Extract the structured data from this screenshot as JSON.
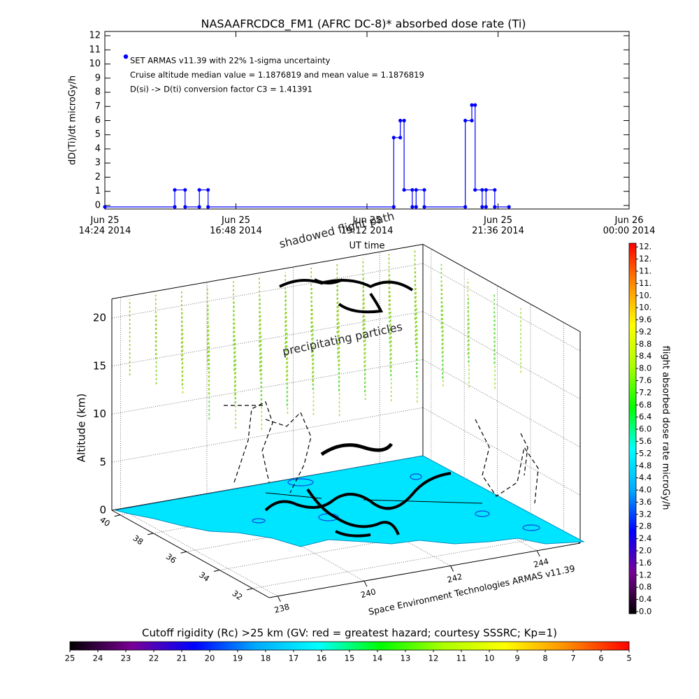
{
  "chart_data": [
    {
      "type": "line",
      "title": "NASAAFRCDC8_FM1 (AFRC DC-8)* absorbed dose rate (Ti)",
      "ylabel": "dD(Ti)/dt microGy/h",
      "xlabel": "UT time",
      "color": "#0000ff",
      "x": [
        14.4,
        15.68,
        15.68,
        15.87,
        15.87,
        16.13,
        16.13,
        16.29,
        16.29,
        19.69,
        19.69,
        19.81,
        19.81,
        19.88,
        19.88,
        20.03,
        20.03,
        20.1,
        20.1,
        20.25,
        20.25,
        21.0,
        21.0,
        21.12,
        21.12,
        21.18,
        21.18,
        21.31,
        21.31,
        21.38,
        21.38,
        21.54,
        21.54,
        21.8
      ],
      "values": [
        -0.1,
        -0.1,
        1.1,
        1.1,
        -0.1,
        -0.1,
        1.1,
        1.1,
        -0.1,
        -0.1,
        4.8,
        4.8,
        6.0,
        6.0,
        1.1,
        1.1,
        -0.1,
        -0.1,
        1.1,
        1.1,
        -0.1,
        -0.1,
        6.0,
        6.0,
        7.1,
        7.1,
        1.1,
        1.1,
        -0.1,
        -0.1,
        1.1,
        1.1,
        -0.1,
        -0.1
      ],
      "xlim": [
        14.4,
        24
      ],
      "xticks": [
        {
          "value": 14.4,
          "label": "Jun 25\n14:24 2014"
        },
        {
          "value": 16.8,
          "label": "Jun 25\n16:48 2014"
        },
        {
          "value": 19.2,
          "label": "Jun 25\n19:12 2014"
        },
        {
          "value": 21.6,
          "label": "Jun 25\n21:36 2014"
        },
        {
          "value": 24,
          "label": "Jun 26\n00:00 2014"
        }
      ],
      "ylim": [
        -0.25,
        12.3
      ],
      "yticks": [
        0,
        1,
        2,
        3,
        4,
        5,
        6,
        7,
        8,
        9,
        10,
        11,
        12
      ],
      "annotations": [
        "SET ARMAS v11.39 with 22% 1-sigma uncertainty",
        "Cruise altitude median value = 1.1876819 and mean value = 1.1876819",
        "D(si) -> D(ti) conversion factor C3 = 1.41391"
      ]
    },
    {
      "type": "surface3d",
      "annotations": [
        "shadowed flight path",
        "precipitating particles"
      ],
      "zlabel": "Altitude (km)",
      "xlabel": "Space Environment Technologies ARMAS v11.39",
      "xlim": [
        237.8,
        245
      ],
      "xticks": [
        238,
        240,
        242,
        244
      ],
      "ylim": [
        31,
        40.5
      ],
      "yticks": [
        40,
        38,
        36,
        34,
        32
      ],
      "zlim": [
        0,
        22
      ],
      "zticks": [
        0,
        5,
        10,
        15,
        20
      ]
    },
    {
      "type": "colorbar",
      "label": "flight absorbed dose rate microGy/h",
      "orientation": "vertical",
      "colors": [
        "#000000",
        "#7a0096",
        "#0000ff",
        "#00aaff",
        "#00ffff",
        "#00ff00",
        "#aaff00",
        "#ffff00",
        "#ff8c00",
        "#ff0000"
      ],
      "ylim": [
        -0.07,
        12.12
      ],
      "yticks": [
        {
          "value": 0,
          "label": "0.0"
        },
        0.4,
        0.8,
        1.2,
        1.6,
        {
          "value": 2,
          "label": "2.0"
        },
        2.4,
        2.8,
        3.2,
        3.6,
        {
          "value": 4,
          "label": "4.0"
        },
        4.4,
        4.8,
        5.2,
        5.6,
        {
          "value": 6,
          "label": "6.0"
        },
        6.4,
        6.8,
        7.2,
        7.6,
        {
          "value": 8,
          "label": "8.0"
        },
        8.4,
        8.8,
        9.2,
        9.6,
        {
          "value": 10,
          "label": "10."
        },
        {
          "value": 10.4,
          "label": "10."
        },
        {
          "value": 10.8,
          "label": "11."
        },
        {
          "value": 11.2,
          "label": "11."
        },
        {
          "value": 11.6,
          "label": "12."
        },
        {
          "value": 12,
          "label": "12."
        }
      ]
    },
    {
      "type": "colorbar",
      "label": "Cutoff rigidity (Rc) >25 km (GV: red = greatest hazard; courtesy SSSRC; Kp=1)",
      "orientation": "horizontal",
      "colors": [
        "#000000",
        "#7a0096",
        "#0000ff",
        "#00aaff",
        "#00ffff",
        "#00ff00",
        "#aaff00",
        "#ffff00",
        "#ff8c00",
        "#ff0000"
      ],
      "xlim": [
        25,
        5
      ],
      "xticks": [
        25,
        24,
        23,
        22,
        21,
        20,
        19,
        18,
        17,
        16,
        15,
        14,
        13,
        12,
        11,
        10,
        9,
        8,
        7,
        6,
        5
      ]
    }
  ]
}
